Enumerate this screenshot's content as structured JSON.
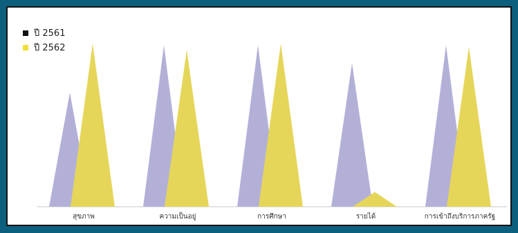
{
  "chart_data": {
    "type": "area",
    "shape": "triangle",
    "categories": [
      "สุขภาพ",
      "ความเป็นอยู่",
      "การศึกษา",
      "รายได้",
      "การเข้าถึงบริการภาครัฐ"
    ],
    "series": [
      {
        "name": "ปี 2561",
        "color": "#b3b0d8",
        "values": [
          70,
          99,
          99,
          88,
          99
        ]
      },
      {
        "name": "ปี 2562",
        "color": "#e5d65a",
        "values": [
          100,
          96,
          100,
          9,
          98
        ]
      }
    ],
    "legend_swatch_colors": [
      "#111111",
      "#f2df3a"
    ],
    "ylim": [
      0,
      100
    ],
    "legend_position": "top-left",
    "grid": false
  }
}
